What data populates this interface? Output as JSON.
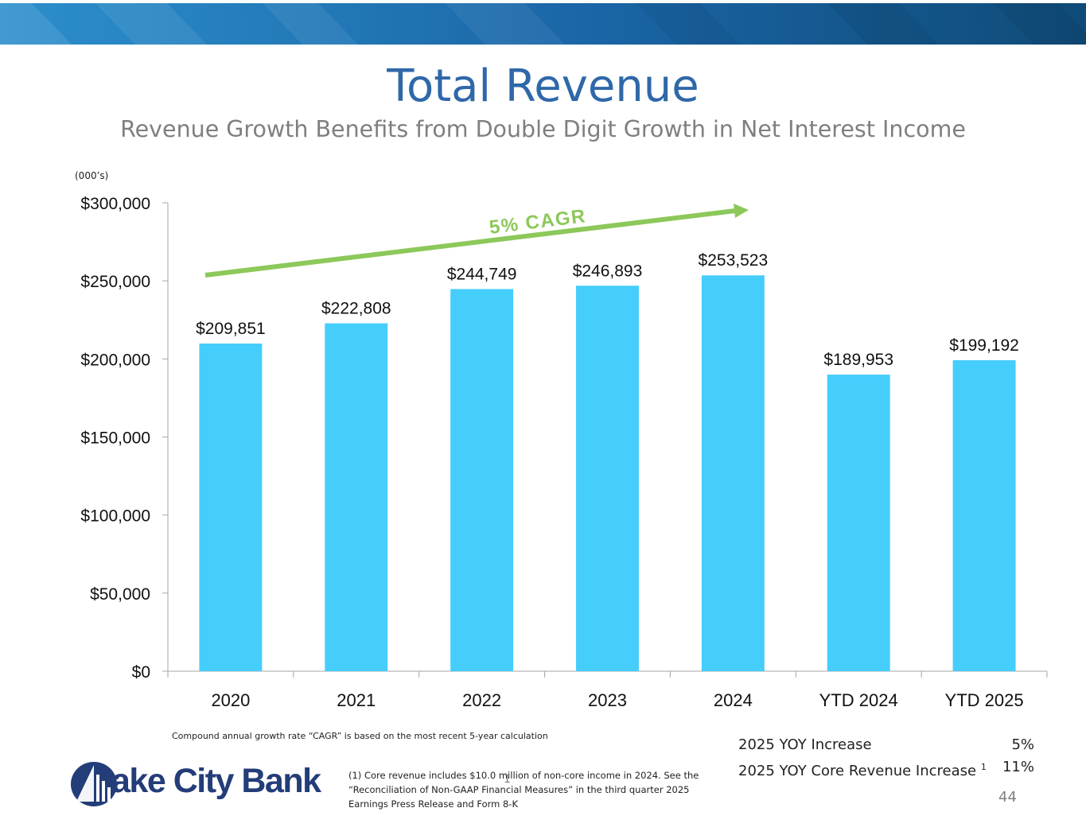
{
  "slide": {
    "title": "Total Revenue",
    "subtitle": "Revenue Growth Benefits from Double Digit Growth in Net Interest Income",
    "units_note": "(000’s)",
    "cagr_footnote": "Compound annual growth rate “CAGR” is based on the most recent 5-year calculation",
    "core_footnote": "(1) Core revenue includes $10.0 million of non-core income in 2024. See the “Reconciliation of Non-GAAP Financial Measures” in the third quarter 2025 Earnings Press Release and Form 8-K",
    "page_marker": "1",
    "page_number": "44"
  },
  "yoy": [
    {
      "label": "2025 YOY Increase",
      "sup": "",
      "value": "5%"
    },
    {
      "label": "2025 YOY Core Revenue Increase",
      "sup": "1",
      "value": "11%"
    }
  ],
  "logo": {
    "text": "ake City Bank",
    "alt": "Lake City Bank"
  },
  "colors": {
    "bar": "#45cdfc",
    "title": "#2f68a9",
    "subtitle": "#7f7f7f",
    "arrow": "#8cc85a",
    "banner_dark": "#0f4b78",
    "banner_light": "#2c8fcc",
    "logo": "#233d79"
  },
  "chart_data": {
    "type": "bar",
    "categories": [
      "2020",
      "2021",
      "2022",
      "2023",
      "2024",
      "YTD 2024",
      "YTD 2025"
    ],
    "values": [
      209851,
      222808,
      244749,
      246893,
      253523,
      189953,
      199192
    ],
    "data_labels": [
      "$209,851",
      "$222,808",
      "$244,749",
      "$246,893",
      "$253,523",
      "$189,953",
      "$199,192"
    ],
    "y_ticks": [
      0,
      50000,
      100000,
      150000,
      200000,
      250000,
      300000
    ],
    "y_tick_labels": [
      "$0",
      "$50,000",
      "$100,000",
      "$150,000",
      "$200,000",
      "$250,000",
      "$300,000"
    ],
    "ylim": [
      0,
      300000
    ],
    "grid": false,
    "annotation": "5% CAGR",
    "xlabel": "",
    "ylabel": ""
  }
}
